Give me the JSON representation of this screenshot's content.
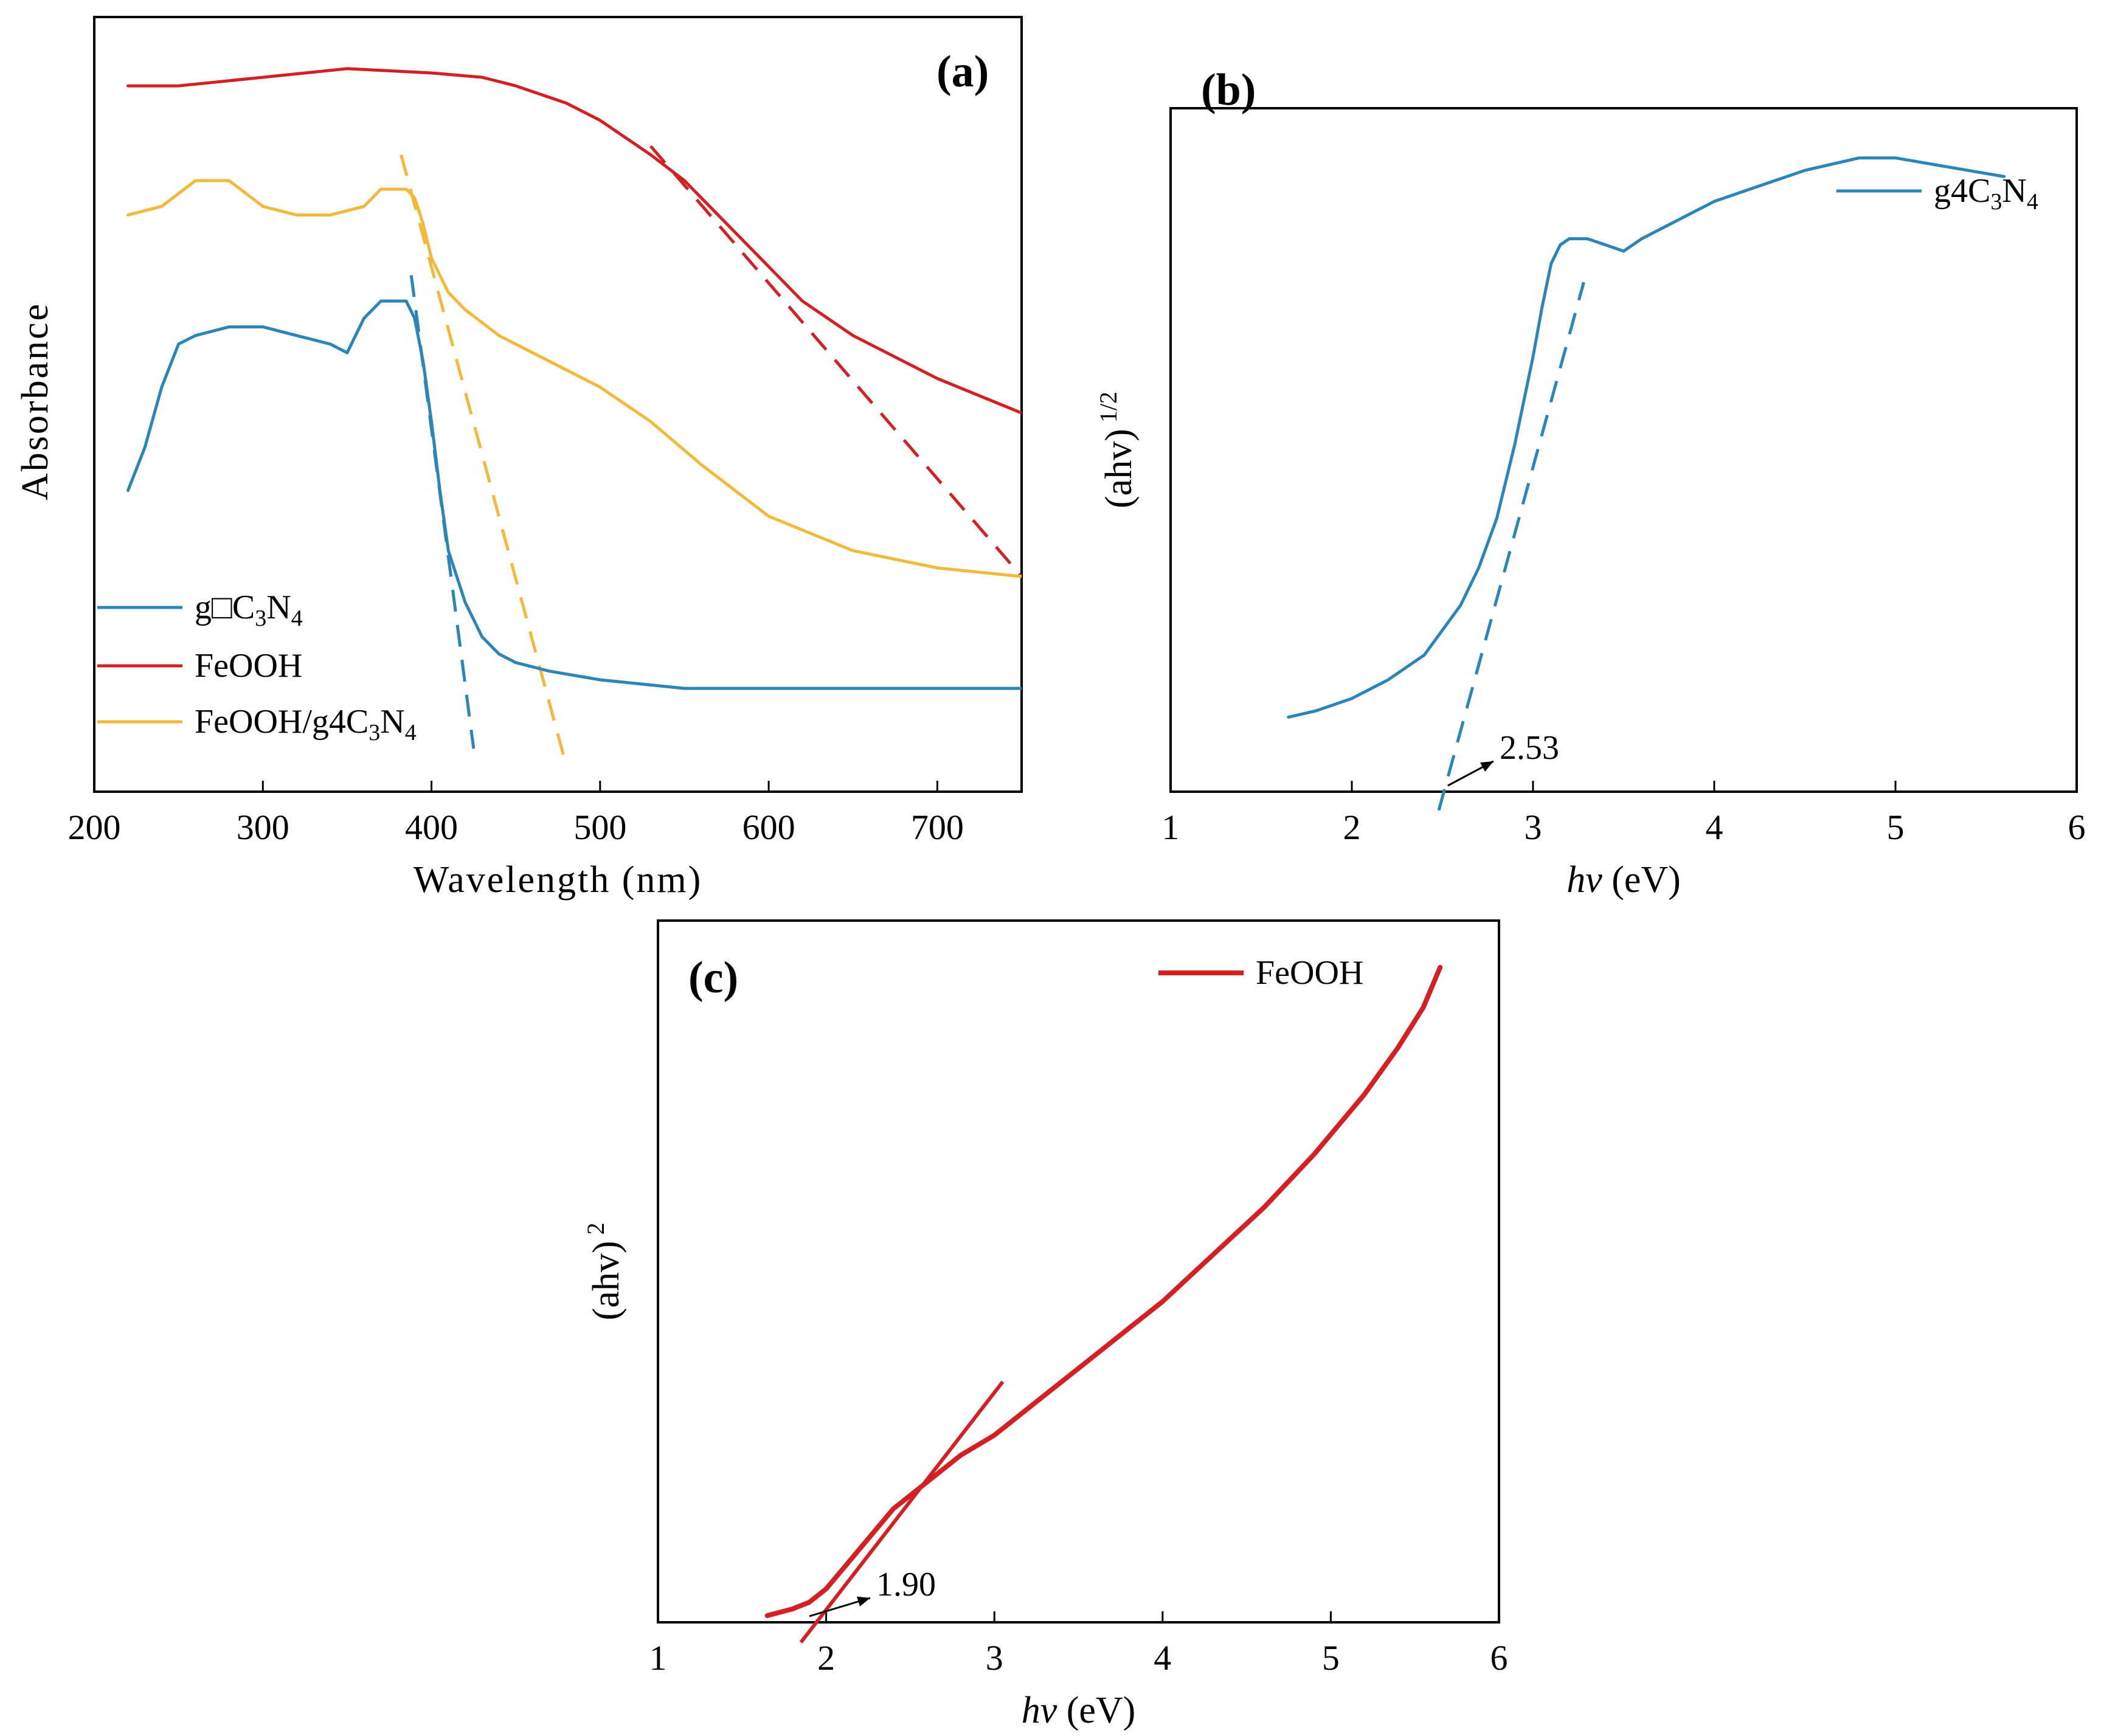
{
  "chart_data": [
    {
      "panel": "(a)",
      "type": "line",
      "xlabel": "Wavelength (nm)",
      "ylabel": "Absorbance",
      "xlim": [
        200,
        750
      ],
      "xticks": [
        "200",
        "300",
        "400",
        "500",
        "600",
        "700"
      ],
      "legend_position": "bottom-left",
      "series": [
        {
          "name": "g□C3N4",
          "legend_main": "g□C",
          "legend_sub1": "3",
          "legend_mid": "N",
          "legend_sub2": "4",
          "color": "#2a86b8",
          "x": [
            220,
            230,
            240,
            250,
            260,
            280,
            300,
            320,
            340,
            350,
            360,
            370,
            380,
            385,
            390,
            395,
            400,
            405,
            410,
            420,
            430,
            440,
            450,
            470,
            500,
            550,
            600,
            650,
            700,
            750
          ],
          "y": [
            0.5,
            0.55,
            0.62,
            0.67,
            0.68,
            0.69,
            0.69,
            0.68,
            0.67,
            0.66,
            0.7,
            0.72,
            0.72,
            0.72,
            0.7,
            0.65,
            0.58,
            0.5,
            0.43,
            0.37,
            0.33,
            0.31,
            0.3,
            0.29,
            0.28,
            0.27,
            0.27,
            0.27,
            0.27,
            0.27
          ]
        },
        {
          "name": "FeOOH",
          "legend_main": "FeOOH",
          "color": "#d42022",
          "x": [
            220,
            250,
            300,
            350,
            400,
            430,
            450,
            480,
            500,
            530,
            550,
            580,
            600,
            620,
            650,
            700,
            750
          ],
          "y": [
            0.97,
            0.97,
            0.98,
            0.99,
            0.985,
            0.98,
            0.97,
            0.95,
            0.93,
            0.89,
            0.86,
            0.8,
            0.76,
            0.72,
            0.68,
            0.63,
            0.59
          ]
        },
        {
          "name": "FeOOH/g4C3N4",
          "legend_main": "FeOOH/g4C",
          "legend_sub1": "3",
          "legend_mid": "N",
          "legend_sub2": "4",
          "color": "#f2b93b",
          "x": [
            220,
            240,
            260,
            280,
            300,
            320,
            340,
            360,
            370,
            380,
            385,
            390,
            395,
            400,
            410,
            420,
            440,
            460,
            480,
            500,
            530,
            560,
            600,
            650,
            700,
            750
          ],
          "y": [
            0.82,
            0.83,
            0.86,
            0.86,
            0.83,
            0.82,
            0.82,
            0.83,
            0.85,
            0.85,
            0.85,
            0.84,
            0.81,
            0.77,
            0.73,
            0.71,
            0.68,
            0.66,
            0.64,
            0.62,
            0.58,
            0.53,
            0.47,
            0.43,
            0.41,
            0.4
          ]
        }
      ],
      "tangents": [
        {
          "color": "#2a86b8",
          "x": [
            388,
            425
          ],
          "y": [
            0.75,
            0.2
          ]
        },
        {
          "color": "#f2b93b",
          "x": [
            382,
            480
          ],
          "y": [
            0.89,
            0.18
          ]
        },
        {
          "color": "#d42022",
          "x": [
            530,
            750
          ],
          "y": [
            0.9,
            0.4
          ]
        }
      ]
    },
    {
      "panel": "(b)",
      "type": "line",
      "xlabel_italic": "hv",
      "xlabel_rest": " (eV)",
      "ylabel_main": "(ahv)",
      "ylabel_sup": "1/2",
      "xlim": [
        1,
        6
      ],
      "xticks": [
        "1",
        "2",
        "3",
        "4",
        "5",
        "6"
      ],
      "legend_position": "top-right",
      "series": [
        {
          "name": "g4C3N4",
          "legend_main": "g4C",
          "legend_sub1": "3",
          "legend_mid": "N",
          "legend_sub2": "4",
          "color": "#2a86b8",
          "x": [
            1.65,
            1.8,
            2.0,
            2.2,
            2.4,
            2.6,
            2.7,
            2.8,
            2.9,
            3.0,
            3.05,
            3.1,
            3.15,
            3.2,
            3.3,
            3.4,
            3.5,
            3.6,
            3.8,
            4.0,
            4.2,
            4.5,
            4.8,
            5.0,
            5.2,
            5.4,
            5.6
          ],
          "y": [
            0.12,
            0.13,
            0.15,
            0.18,
            0.22,
            0.3,
            0.36,
            0.44,
            0.56,
            0.7,
            0.78,
            0.85,
            0.88,
            0.89,
            0.89,
            0.88,
            0.87,
            0.89,
            0.92,
            0.95,
            0.97,
            1.0,
            1.02,
            1.02,
            1.01,
            1.0,
            0.99
          ]
        }
      ],
      "tangent": {
        "color": "#2a86b8",
        "x": [
          2.48,
          3.28
        ],
        "y": [
          -0.03,
          0.82
        ]
      },
      "annotation": {
        "text": "2.53",
        "x": 2.53
      }
    },
    {
      "panel": "(c)",
      "type": "line",
      "xlabel_italic": "hv",
      "xlabel_rest": " (eV)",
      "ylabel_main": "(ahv)",
      "ylabel_sup": "2",
      "xlim": [
        1,
        6
      ],
      "xticks": [
        "1",
        "2",
        "3",
        "4",
        "5",
        "6"
      ],
      "legend_position": "top-right",
      "series": [
        {
          "name": "FeOOH",
          "legend_main": "FeOOH",
          "color": "#d42022",
          "x": [
            1.65,
            1.8,
            1.9,
            2.0,
            2.1,
            2.2,
            2.3,
            2.4,
            2.5,
            2.6,
            2.8,
            3.0,
            3.2,
            3.5,
            3.8,
            4.0,
            4.3,
            4.6,
            4.9,
            5.2,
            5.4,
            5.55,
            5.65
          ],
          "y": [
            0.01,
            0.02,
            0.03,
            0.05,
            0.08,
            0.11,
            0.14,
            0.17,
            0.19,
            0.21,
            0.25,
            0.28,
            0.32,
            0.38,
            0.44,
            0.48,
            0.55,
            0.62,
            0.7,
            0.79,
            0.86,
            0.92,
            0.98
          ]
        }
      ],
      "tangent": {
        "color": "#d42022",
        "x": [
          1.85,
          3.05
        ],
        "y": [
          -0.03,
          0.36
        ]
      },
      "annotation": {
        "text": "1.90",
        "x": 1.9
      }
    }
  ]
}
